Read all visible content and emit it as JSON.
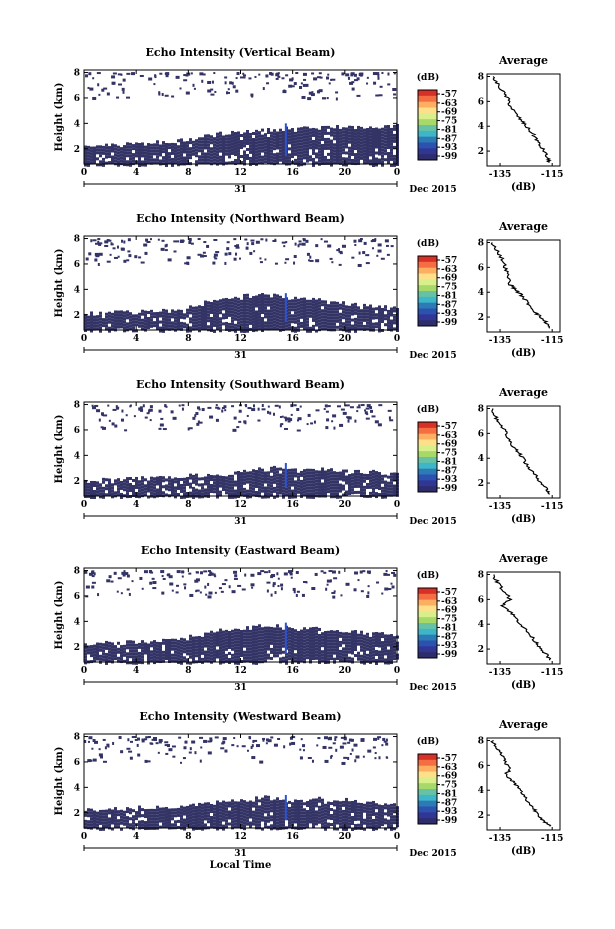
{
  "figure": {
    "time_label": "Local Time",
    "date_label": "Dec 2015",
    "day_label": "31",
    "colorbar_unit": "(dB)",
    "colorbar_ticks": [
      "-57",
      "-63",
      "-69",
      "-75",
      "-81",
      "-87",
      "-93",
      "-99"
    ],
    "colorbar_colors": [
      "#d73027",
      "#f46d43",
      "#fdae61",
      "#fee08b",
      "#d9ef8b",
      "#a6d96a",
      "#66c2a5",
      "#3fb6c8",
      "#2c7bb6",
      "#2c52b0",
      "#313695",
      "#2d2d6e"
    ],
    "heatmap_color": "#333366",
    "profile_title": "Average",
    "profile_xlabel": "(dB)",
    "y_axis_label": "Height (km)"
  },
  "chart_data": [
    {
      "type": "heatmap",
      "title": "Echo Intensity (Vertical Beam)",
      "xlabel": "",
      "ylabel": "Height (km)",
      "x_ticks": [
        "0",
        "4",
        "8",
        "12",
        "16",
        "20",
        "0"
      ],
      "y_ticks": [
        "2",
        "4",
        "6",
        "8"
      ],
      "xlim": [
        0,
        24
      ],
      "ylim": [
        0.8,
        8.2
      ],
      "layer_top_km": [
        2.2,
        2.3,
        2.3,
        2.4,
        2.4,
        2.5,
        2.6,
        2.7,
        2.8,
        3.0,
        3.2,
        3.3,
        3.4,
        3.5,
        3.5,
        3.6,
        3.6,
        3.6,
        3.7,
        3.7,
        3.7,
        3.7,
        3.8,
        3.8
      ],
      "profile": {
        "type": "line",
        "title": "Average",
        "xlabel": "(dB)",
        "x_ticks": [
          "-135",
          "-115"
        ],
        "xlim": [
          -140,
          -112
        ],
        "ylim": [
          0.8,
          8.2
        ],
        "x": [
          -138,
          -136,
          -134,
          -132,
          -131,
          -129,
          -127,
          -125,
          -123,
          -121,
          -120,
          -118,
          -117,
          -116
        ],
        "y": [
          8.0,
          7.4,
          6.8,
          6.2,
          5.6,
          5.0,
          4.5,
          4.0,
          3.5,
          3.0,
          2.5,
          2.0,
          1.5,
          1.1
        ]
      }
    },
    {
      "type": "heatmap",
      "title": "Echo Intensity (Northward Beam)",
      "xlabel": "",
      "ylabel": "Height (km)",
      "x_ticks": [
        "0",
        "4",
        "8",
        "12",
        "16",
        "20",
        "0"
      ],
      "y_ticks": [
        "2",
        "4",
        "6",
        "8"
      ],
      "xlim": [
        0,
        24
      ],
      "ylim": [
        0.8,
        8.2
      ],
      "layer_top_km": [
        2.1,
        2.1,
        2.2,
        2.2,
        2.3,
        2.3,
        2.3,
        2.5,
        2.8,
        3.0,
        3.2,
        3.4,
        3.5,
        3.6,
        3.5,
        3.3,
        3.3,
        3.2,
        3.0,
        2.9,
        2.8,
        2.7,
        2.6,
        2.5
      ],
      "profile": {
        "type": "line",
        "title": "Average",
        "xlabel": "(dB)",
        "x_ticks": [
          "-135",
          "-115"
        ],
        "xlim": [
          -140,
          -112
        ],
        "ylim": [
          0.8,
          8.2
        ],
        "x": [
          -138,
          -136,
          -134,
          -133,
          -132,
          -131,
          -129,
          -127,
          -125,
          -123,
          -121,
          -119,
          -117,
          -116
        ],
        "y": [
          8.0,
          7.3,
          6.6,
          6.0,
          5.3,
          4.6,
          4.2,
          3.8,
          3.3,
          2.8,
          2.3,
          1.9,
          1.5,
          1.1
        ]
      }
    },
    {
      "type": "heatmap",
      "title": "Echo Intensity (Southward Beam)",
      "xlabel": "",
      "ylabel": "Height (km)",
      "x_ticks": [
        "0",
        "4",
        "8",
        "12",
        "16",
        "20",
        "0"
      ],
      "y_ticks": [
        "2",
        "4",
        "6",
        "8"
      ],
      "xlim": [
        0,
        24
      ],
      "ylim": [
        0.8,
        8.2
      ],
      "layer_top_km": [
        2.0,
        2.1,
        2.1,
        2.2,
        2.2,
        2.3,
        2.3,
        2.3,
        2.4,
        2.4,
        2.5,
        2.6,
        2.8,
        2.9,
        3.2,
        3.0,
        2.8,
        2.8,
        2.9,
        2.8,
        2.7,
        2.7,
        2.6,
        2.5
      ],
      "profile": {
        "type": "line",
        "title": "Average",
        "xlabel": "(dB)",
        "x_ticks": [
          "-135",
          "-115"
        ],
        "xlim": [
          -140,
          -112
        ],
        "ylim": [
          0.8,
          8.2
        ],
        "x": [
          -138,
          -137,
          -135,
          -133,
          -132,
          -130,
          -128,
          -126,
          -125,
          -123,
          -121,
          -119,
          -117,
          -116
        ],
        "y": [
          8.0,
          7.4,
          6.8,
          6.2,
          5.6,
          5.0,
          4.5,
          4.0,
          3.5,
          3.0,
          2.5,
          2.0,
          1.5,
          1.1
        ]
      }
    },
    {
      "type": "heatmap",
      "title": "Echo Intensity (Eastward Beam)",
      "xlabel": "",
      "ylabel": "Height (km)",
      "x_ticks": [
        "0",
        "4",
        "8",
        "12",
        "16",
        "20",
        "0"
      ],
      "y_ticks": [
        "2",
        "4",
        "6",
        "8"
      ],
      "xlim": [
        0,
        24
      ],
      "ylim": [
        0.8,
        8.2
      ],
      "layer_top_km": [
        2.2,
        2.3,
        2.3,
        2.4,
        2.4,
        2.5,
        2.5,
        2.6,
        2.8,
        3.1,
        3.3,
        3.4,
        3.5,
        3.6,
        3.6,
        3.5,
        3.4,
        3.4,
        3.3,
        3.3,
        3.2,
        3.1,
        3.0,
        2.9
      ],
      "profile": {
        "type": "line",
        "title": "Average",
        "xlabel": "(dB)",
        "x_ticks": [
          "-135",
          "-115"
        ],
        "xlim": [
          -140,
          -112
        ],
        "ylim": [
          0.8,
          8.2
        ],
        "x": [
          -138,
          -136,
          -134,
          -131,
          -134,
          -131,
          -129,
          -127,
          -125,
          -123,
          -121,
          -119,
          -117,
          -116
        ],
        "y": [
          8.0,
          7.4,
          6.8,
          6.0,
          5.5,
          5.0,
          4.5,
          4.0,
          3.5,
          3.0,
          2.5,
          2.0,
          1.5,
          1.1
        ]
      }
    },
    {
      "type": "heatmap",
      "title": "Echo Intensity (Westward Beam)",
      "xlabel": "Local Time",
      "ylabel": "Height (km)",
      "x_ticks": [
        "0",
        "4",
        "8",
        "12",
        "16",
        "20",
        "0"
      ],
      "y_ticks": [
        "2",
        "4",
        "6",
        "8"
      ],
      "xlim": [
        0,
        24
      ],
      "ylim": [
        0.8,
        8.2
      ],
      "layer_top_km": [
        2.2,
        2.2,
        2.3,
        2.3,
        2.4,
        2.4,
        2.5,
        2.5,
        2.6,
        2.7,
        2.8,
        2.9,
        3.0,
        3.2,
        3.1,
        3.0,
        3.0,
        3.1,
        3.0,
        3.0,
        2.9,
        2.8,
        2.7,
        2.6
      ],
      "profile": {
        "type": "line",
        "title": "Average",
        "xlabel": "(dB)",
        "x_ticks": [
          "-135",
          "-115"
        ],
        "xlim": [
          -140,
          -112
        ],
        "ylim": [
          0.8,
          8.2
        ],
        "x": [
          -138,
          -136,
          -134,
          -133,
          -131,
          -133,
          -130,
          -128,
          -126,
          -124,
          -122,
          -120,
          -118,
          -116
        ],
        "y": [
          8.0,
          7.4,
          6.8,
          6.2,
          5.7,
          5.2,
          4.7,
          4.2,
          3.6,
          3.0,
          2.5,
          2.0,
          1.5,
          1.1
        ]
      }
    }
  ]
}
